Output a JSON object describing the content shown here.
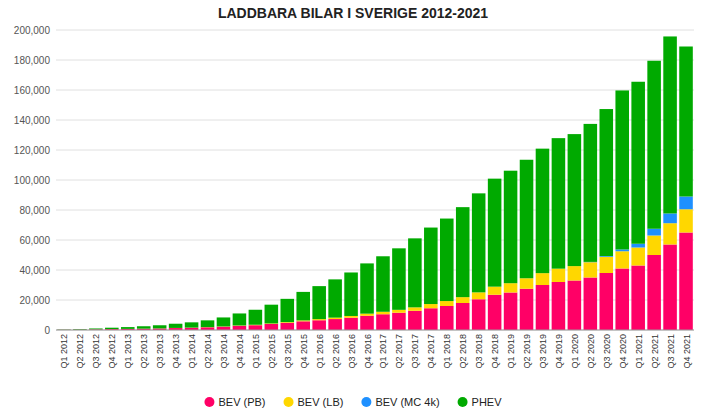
{
  "chart_data": {
    "type": "bar",
    "stacked": true,
    "title": "LADDBARA BILAR I SVERIGE 2012-2021",
    "categories": [
      "Q1 2012",
      "Q2 2012",
      "Q3 2012",
      "Q4 2012",
      "Q1 2013",
      "Q2 2013",
      "Q3 2013",
      "Q4 2013",
      "Q1 2014",
      "Q2 2014",
      "Q3 2014",
      "Q4 2014",
      "Q1 2015",
      "Q2 2015",
      "Q3 2015",
      "Q4 2015",
      "Q1 2016",
      "Q2 2016",
      "Q3 2016",
      "Q4 2016",
      "Q1 2017",
      "Q2 2017",
      "Q3 2017",
      "Q4 2017",
      "Q1 2018",
      "Q2 2018",
      "Q3 2018",
      "Q4 2018",
      "Q1 2019",
      "Q2 2019",
      "Q3 2019",
      "Q4 2019",
      "Q1 2020",
      "Q2 2020",
      "Q3 2020",
      "Q4 2020",
      "Q1 2021",
      "Q2 2021",
      "Q3 2021",
      "Q4 2021"
    ],
    "series": [
      {
        "name": "BEV (PB)",
        "color": "#FF0066",
        "values": [
          150,
          250,
          400,
          600,
          700,
          850,
          1000,
          1300,
          1500,
          1800,
          2200,
          2800,
          3200,
          4000,
          4800,
          5800,
          6500,
          7300,
          8200,
          9500,
          10500,
          11500,
          12800,
          14500,
          16000,
          18000,
          20500,
          23500,
          25000,
          27500,
          30000,
          32000,
          33000,
          35000,
          38000,
          41000,
          43000,
          50000,
          57000,
          65000
        ]
      },
      {
        "name": "BEV (LB)",
        "color": "#FFD700",
        "values": [
          10,
          15,
          20,
          30,
          40,
          50,
          60,
          80,
          100,
          130,
          170,
          230,
          300,
          380,
          470,
          600,
          750,
          950,
          1150,
          1400,
          1650,
          1950,
          2300,
          2800,
          3300,
          3900,
          4600,
          5400,
          6200,
          7000,
          7900,
          8900,
          9600,
          10200,
          10800,
          11500,
          12000,
          13000,
          14200,
          15500
        ]
      },
      {
        "name": "BEV (MC 4k)",
        "color": "#1E90FF",
        "values": [
          0,
          0,
          0,
          0,
          0,
          0,
          0,
          0,
          0,
          0,
          0,
          0,
          0,
          0,
          0,
          0,
          0,
          0,
          0,
          0,
          0,
          0,
          0,
          0,
          0,
          0,
          0,
          0,
          0,
          0,
          0,
          0,
          0,
          200,
          500,
          1200,
          2500,
          4500,
          6500,
          8500
        ]
      },
      {
        "name": "PHEV",
        "color": "#00AA00",
        "values": [
          200,
          400,
          600,
          900,
          1200,
          1600,
          2100,
          2800,
          3500,
          4500,
          6000,
          8000,
          10000,
          12500,
          15500,
          19000,
          22000,
          25500,
          29000,
          33500,
          37000,
          41000,
          46000,
          51000,
          55000,
          60000,
          66000,
          72000,
          75000,
          79000,
          83000,
          87000,
          88000,
          92000,
          98000,
          106000,
          108000,
          112000,
          118000,
          100000
        ]
      }
    ],
    "ylim": [
      0,
      200000
    ],
    "yticks": [
      0,
      {
        "value": 20000,
        "label": "20,000"
      },
      {
        "value": 40000,
        "label": "40,000"
      },
      {
        "value": 60000,
        "label": "60,000"
      },
      {
        "value": 80000,
        "label": "80,000"
      },
      {
        "value": 100000,
        "label": "100,000"
      },
      {
        "value": 120000,
        "label": "120,000"
      },
      {
        "value": 140000,
        "label": "140,000"
      },
      {
        "value": 160000,
        "label": "160,000"
      },
      {
        "value": 180000,
        "label": "180,000"
      },
      {
        "value": 200000,
        "label": "200,000"
      }
    ],
    "grid": true,
    "legend": "bottom"
  }
}
